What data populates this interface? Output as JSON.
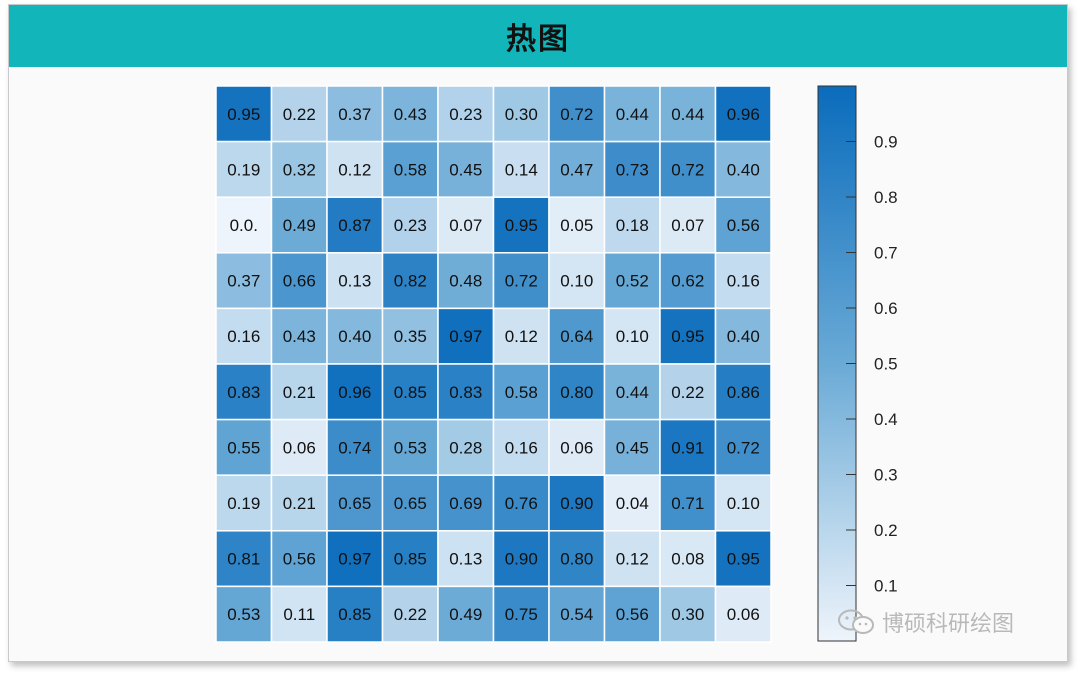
{
  "header": {
    "title": "热图"
  },
  "watermark": {
    "text": "博硕科研绘图",
    "icon": "wechat-icon"
  },
  "colors": {
    "title_bar": "#12b5b9",
    "low": "#eef4fb",
    "high": "#0a6cbc"
  },
  "chart_data": {
    "type": "heatmap",
    "title": "",
    "xlabel": "",
    "ylabel": "",
    "value_range": [
      0.0,
      1.0
    ],
    "colorbar_ticks": [
      "0.1",
      "0.2",
      "0.3",
      "0.4",
      "0.5",
      "0.6",
      "0.7",
      "0.8",
      "0.9"
    ],
    "cell_labels": [
      [
        "0.95",
        "0.22",
        "0.37",
        "0.43",
        "0.23",
        "0.30",
        "0.72",
        "0.44",
        "0.44",
        "0.96"
      ],
      [
        "0.19",
        "0.32",
        "0.12",
        "0.58",
        "0.45",
        "0.14",
        "0.47",
        "0.73",
        "0.72",
        "0.40"
      ],
      [
        "0.0.",
        "0.49",
        "0.87",
        "0.23",
        "0.07",
        "0.95",
        "0.05",
        "0.18",
        "0.07",
        "0.56"
      ],
      [
        "0.37",
        "0.66",
        "0.13",
        "0.82",
        "0.48",
        "0.72",
        "0.10",
        "0.52",
        "0.62",
        "0.16"
      ],
      [
        "0.16",
        "0.43",
        "0.40",
        "0.35",
        "0.97",
        "0.12",
        "0.64",
        "0.10",
        "0.95",
        "0.40"
      ],
      [
        "0.83",
        "0.21",
        "0.96",
        "0.85",
        "0.83",
        "0.58",
        "0.80",
        "0.44",
        "0.22",
        "0.86"
      ],
      [
        "0.55",
        "0.06",
        "0.74",
        "0.53",
        "0.28",
        "0.16",
        "0.06",
        "0.45",
        "0.91",
        "0.72"
      ],
      [
        "0.19",
        "0.21",
        "0.65",
        "0.65",
        "0.69",
        "0.76",
        "0.90",
        "0.04",
        "0.71",
        "0.10"
      ],
      [
        "0.81",
        "0.56",
        "0.97",
        "0.85",
        "0.13",
        "0.90",
        "0.80",
        "0.12",
        "0.08",
        "0.95"
      ],
      [
        "0.53",
        "0.11",
        "0.85",
        "0.22",
        "0.49",
        "0.75",
        "0.54",
        "0.56",
        "0.30",
        "0.06"
      ]
    ]
  }
}
